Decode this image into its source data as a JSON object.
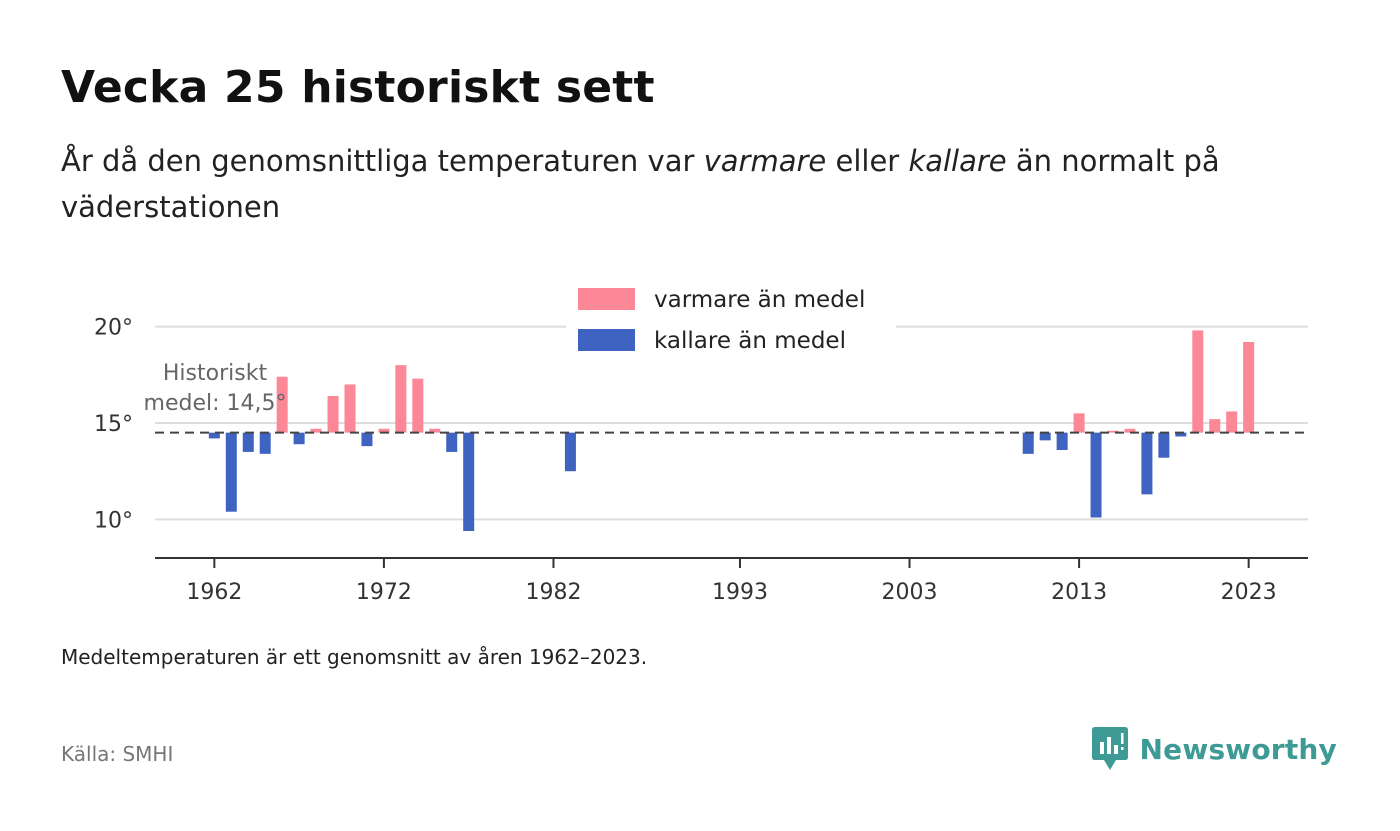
{
  "header": {
    "title": "Vecka 25 historiskt sett",
    "subtitle_part1": "År då den genomsnittliga temperaturen var ",
    "subtitle_warm": "varmare",
    "subtitle_part2": " eller ",
    "subtitle_cold": "kallare",
    "subtitle_part3": " än normalt på väderstationen"
  },
  "footer": {
    "note": "Medeltemperaturen är ett genomsnitt av åren 1962–2023.",
    "source": "Källa: SMHI",
    "brand": "Newsworthy"
  },
  "colors": {
    "warm": "#fc8796",
    "cold": "#3f63c0",
    "brand": "#3d9a94",
    "grid": "#dddddd",
    "axis": "#333333",
    "baseline": "#444444"
  },
  "chart_data": {
    "type": "bar",
    "title": "Vecka 25 historiskt sett",
    "baseline": 14.5,
    "baseline_label_lines": [
      "Historiskt",
      "medel: 14,5°"
    ],
    "ylim": [
      8,
      22
    ],
    "yticks": [
      10,
      15,
      20
    ],
    "ytick_labels": [
      "10°",
      "15°",
      "20°"
    ],
    "xlim": [
      1958.5,
      2026.5
    ],
    "xticks": [
      1962,
      1972,
      1982,
      1993,
      2003,
      2013,
      2023
    ],
    "xtick_labels": [
      "1962",
      "1972",
      "1982",
      "1993",
      "2003",
      "2013",
      "2023"
    ],
    "grid": true,
    "legend": {
      "placement": "top-center",
      "items": [
        {
          "label": "varmare än medel",
          "key": "warm"
        },
        {
          "label": "kallare än medel",
          "key": "cold"
        }
      ]
    },
    "bars": [
      {
        "year": 1962,
        "value": 14.2
      },
      {
        "year": 1963,
        "value": 10.4
      },
      {
        "year": 1964,
        "value": 13.5
      },
      {
        "year": 1965,
        "value": 13.4
      },
      {
        "year": 1966,
        "value": 17.4
      },
      {
        "year": 1967,
        "value": 13.9
      },
      {
        "year": 1968,
        "value": 14.7
      },
      {
        "year": 1969,
        "value": 16.4
      },
      {
        "year": 1970,
        "value": 17.0
      },
      {
        "year": 1971,
        "value": 13.8
      },
      {
        "year": 1972,
        "value": 14.7
      },
      {
        "year": 1973,
        "value": 18.0
      },
      {
        "year": 1974,
        "value": 17.3
      },
      {
        "year": 1975,
        "value": 14.7
      },
      {
        "year": 1976,
        "value": 13.5
      },
      {
        "year": 1977,
        "value": 9.4
      },
      {
        "year": 1983,
        "value": 12.5
      },
      {
        "year": 2010,
        "value": 13.4
      },
      {
        "year": 2011,
        "value": 14.1
      },
      {
        "year": 2012,
        "value": 13.6
      },
      {
        "year": 2013,
        "value": 15.5
      },
      {
        "year": 2014,
        "value": 10.1
      },
      {
        "year": 2015,
        "value": 14.6
      },
      {
        "year": 2016,
        "value": 14.7
      },
      {
        "year": 2017,
        "value": 11.3
      },
      {
        "year": 2018,
        "value": 13.2
      },
      {
        "year": 2019,
        "value": 14.3
      },
      {
        "year": 2020,
        "value": 19.8
      },
      {
        "year": 2021,
        "value": 15.2
      },
      {
        "year": 2022,
        "value": 15.6
      },
      {
        "year": 2023,
        "value": 19.2
      }
    ]
  }
}
